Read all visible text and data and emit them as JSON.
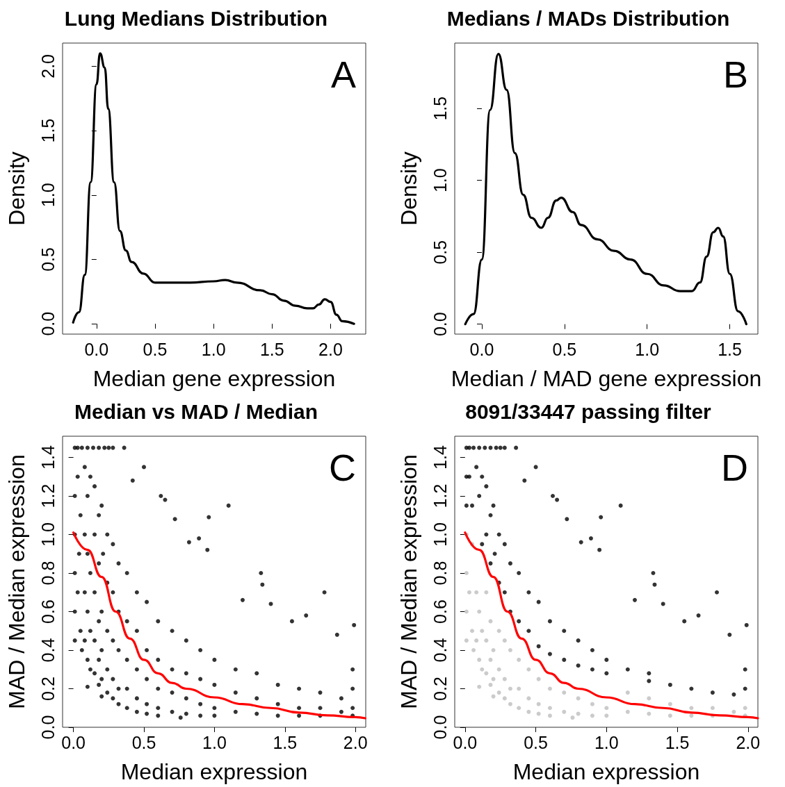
{
  "chart_data": [
    {
      "type": "line",
      "title": "Lung Medians Distribution",
      "xlabel": "Median gene expression",
      "ylabel": "Density",
      "annotations": [
        "A"
      ],
      "xlim": [
        -0.29,
        2.3
      ],
      "ylim": [
        -0.08,
        2.18
      ],
      "xticks": [
        {
          "value": 0,
          "label": "0.0"
        },
        {
          "value": 0.5,
          "label": "0.5"
        },
        {
          "value": 1,
          "label": "1.0"
        },
        {
          "value": 1.5,
          "label": "1.5"
        },
        {
          "value": 2,
          "label": "2.0"
        }
      ],
      "yticks": [
        {
          "value": 0,
          "label": "0.0"
        },
        {
          "value": 0.5,
          "label": "0.5"
        },
        {
          "value": 1,
          "label": "1.0"
        },
        {
          "value": 1.5,
          "label": "1.5"
        },
        {
          "value": 2,
          "label": "2.0"
        }
      ],
      "series": [
        {
          "color": "#000000",
          "x": [
            -0.2,
            -0.15,
            -0.1,
            -0.05,
            0,
            0.03,
            0.07,
            0.1,
            0.15,
            0.2,
            0.25,
            0.3,
            0.4,
            0.5,
            0.6,
            0.8,
            1,
            1.1,
            1.2,
            1.4,
            1.5,
            1.6,
            1.7,
            1.8,
            1.85,
            1.9,
            1.95,
            2,
            2.05,
            2.1,
            2.2
          ],
          "values": [
            0.01,
            0.09,
            0.38,
            1.1,
            1.86,
            2.1,
            1.99,
            1.67,
            1.1,
            0.72,
            0.57,
            0.48,
            0.39,
            0.32,
            0.32,
            0.32,
            0.33,
            0.34,
            0.32,
            0.26,
            0.23,
            0.18,
            0.14,
            0.12,
            0.12,
            0.15,
            0.19,
            0.17,
            0.07,
            0.02,
            0
          ]
        }
      ]
    },
    {
      "type": "line",
      "title": "Medians / MADs Distribution",
      "xlabel": "Median / MAD gene expression",
      "ylabel": "Density",
      "annotations": [
        "B"
      ],
      "xlim": [
        -0.164,
        1.67
      ],
      "ylim": [
        -0.069,
        1.955
      ],
      "xticks": [
        {
          "value": 0,
          "label": "0.0"
        },
        {
          "value": 0.5,
          "label": "0.5"
        },
        {
          "value": 1,
          "label": "1.0"
        },
        {
          "value": 1.5,
          "label": "1.5"
        }
      ],
      "yticks": [
        {
          "value": 0,
          "label": "0.0"
        },
        {
          "value": 0.5,
          "label": "0.5"
        },
        {
          "value": 1,
          "label": "1.0"
        },
        {
          "value": 1.5,
          "label": "1.5"
        }
      ],
      "series": [
        {
          "color": "#000000",
          "x": [
            -0.1,
            -0.05,
            0,
            0.05,
            0.1,
            0.15,
            0.2,
            0.25,
            0.3,
            0.36,
            0.4,
            0.45,
            0.48,
            0.55,
            0.6,
            0.7,
            0.8,
            0.9,
            1,
            1.1,
            1.2,
            1.27,
            1.32,
            1.36,
            1.4,
            1.43,
            1.46,
            1.5,
            1.55,
            1.6
          ],
          "values": [
            0,
            0.07,
            0.45,
            1.49,
            1.88,
            1.63,
            1.19,
            0.9,
            0.74,
            0.67,
            0.74,
            0.86,
            0.88,
            0.78,
            0.69,
            0.59,
            0.51,
            0.45,
            0.35,
            0.27,
            0.23,
            0.23,
            0.29,
            0.47,
            0.64,
            0.67,
            0.61,
            0.35,
            0.09,
            0
          ]
        }
      ]
    },
    {
      "type": "scatter",
      "title": "Median vs MAD / Median",
      "xlabel": "Median expression",
      "ylabel": "MAD / Median expression",
      "annotations": [
        "C"
      ],
      "xlim": [
        -0.077,
        2.073
      ],
      "ylim": [
        0,
        1.51
      ],
      "xticks": [
        {
          "value": 0,
          "label": "0.0"
        },
        {
          "value": 0.5,
          "label": "0.5"
        },
        {
          "value": 1,
          "label": "1.0"
        },
        {
          "value": 1.5,
          "label": "1.5"
        },
        {
          "value": 2,
          "label": "2.0"
        }
      ],
      "yticks": [
        {
          "value": 0,
          "label": "0.0"
        },
        {
          "value": 0.2,
          "label": "0.2"
        },
        {
          "value": 0.4,
          "label": "0.4"
        },
        {
          "value": 0.6,
          "label": "0.6"
        },
        {
          "value": 0.8,
          "label": "0.8"
        },
        {
          "value": 1,
          "label": "1.0"
        },
        {
          "value": 1.2,
          "label": "1.2"
        },
        {
          "value": 1.4,
          "label": "1.4"
        }
      ],
      "series": [
        {
          "color": "#000000",
          "x": [
            0.01,
            0.01,
            0.01,
            0.01,
            0.01,
            0.01,
            0.03,
            0.06,
            0.1,
            0.14,
            0.18,
            0.22,
            0.25,
            0.28,
            0.36,
            0.03,
            0.05,
            0.04,
            0.03,
            0.05,
            0.06,
            0.08,
            0.08,
            0.08,
            0.08,
            0.1,
            0.1,
            0.1,
            0.1,
            0.12,
            0.12,
            0.12,
            0.12,
            0.15,
            0.15,
            0.15,
            0.15,
            0.15,
            0.18,
            0.18,
            0.18,
            0.18,
            0.18,
            0.2,
            0.21,
            0.2,
            0.2,
            0.2,
            0.24,
            0.24,
            0.24,
            0.24,
            0.24,
            0.28,
            0.28,
            0.28,
            0.28,
            0.28,
            0.32,
            0.32,
            0.32,
            0.32,
            0.32,
            0.38,
            0.38,
            0.38,
            0.38,
            0.38,
            0.45,
            0.45,
            0.45,
            0.45,
            0.45,
            0.52,
            0.52,
            0.52,
            0.52,
            0.52,
            0.6,
            0.6,
            0.6,
            0.6,
            0.6,
            0.7,
            0.7,
            0.7,
            0.7,
            0.8,
            0.8,
            0.8,
            0.8,
            0.9,
            0.9,
            0.9,
            0.9,
            1,
            1,
            1,
            1,
            1.15,
            1.15,
            1.15,
            1.3,
            1.3,
            1.3,
            1.45,
            1.45,
            1.45,
            1.6,
            1.6,
            1.6,
            1.75,
            1.75,
            1.75,
            1.9,
            1.9,
            1.98,
            1.98,
            1.98,
            1.98,
            0.5,
            0.42,
            0.65,
            0.62,
            0.72,
            0.96,
            1.1,
            0.89,
            0.95,
            0.82,
            1.33,
            1.34,
            1.78,
            1.2,
            1.4,
            1.65,
            1.99,
            1.87,
            1.55,
            0.1,
            0.2,
            0.76
          ],
          "values": [
            0.45,
            0.6,
            0.8,
            1,
            1.2,
            1.45,
            1.45,
            1.45,
            1.45,
            1.45,
            1.45,
            1.45,
            1.45,
            1.45,
            1.45,
            1.3,
            1.1,
            0.9,
            0.7,
            0.5,
            0.4,
            1.35,
            1,
            0.7,
            0.45,
            1.2,
            0.9,
            0.6,
            0.35,
            1.3,
            0.8,
            0.5,
            0.3,
            1.25,
            1,
            0.7,
            0.45,
            0.28,
            1.1,
            0.85,
            0.55,
            0.35,
            0.22,
            1.15,
            0.9,
            0.6,
            0.4,
            0.25,
            1,
            0.75,
            0.5,
            0.3,
            0.18,
            0.95,
            0.7,
            0.45,
            0.25,
            0.15,
            0.85,
            0.6,
            0.4,
            0.2,
            0.12,
            0.8,
            0.55,
            0.35,
            0.2,
            0.1,
            0.7,
            0.5,
            0.3,
            0.15,
            0.08,
            0.65,
            0.4,
            0.25,
            0.12,
            0.07,
            0.55,
            0.35,
            0.2,
            0.1,
            0.06,
            0.5,
            0.3,
            0.18,
            0.08,
            0.45,
            0.28,
            0.15,
            0.07,
            0.4,
            0.25,
            0.12,
            0.06,
            0.35,
            0.22,
            0.1,
            0.06,
            0.3,
            0.18,
            0.08,
            0.28,
            0.15,
            0.07,
            0.22,
            0.12,
            0.06,
            0.2,
            0.1,
            0.06,
            0.18,
            0.1,
            0.06,
            0.15,
            0.08,
            0.3,
            0.2,
            0.1,
            0.06,
            1.35,
            1.28,
            1.18,
            1.2,
            1.08,
            1.09,
            1.15,
            0.98,
            0.92,
            0.96,
            0.8,
            0.74,
            0.7,
            0.66,
            0.64,
            0.58,
            0.53,
            0.48,
            0.55,
            0.21,
            0.16,
            0.05
          ]
        },
        {
          "type": "line",
          "color": "#ff0000",
          "x": [
            0,
            0.1,
            0.2,
            0.3,
            0.4,
            0.5,
            0.6,
            0.7,
            0.8,
            1,
            1.2,
            1.4,
            1.6,
            1.8,
            2,
            2.07
          ],
          "values": [
            1.01,
            0.92,
            0.78,
            0.6,
            0.46,
            0.35,
            0.28,
            0.23,
            0.2,
            0.155,
            0.12,
            0.1,
            0.076,
            0.062,
            0.053,
            0.047
          ]
        }
      ]
    },
    {
      "type": "scatter",
      "title": "8091/33447 passing filter",
      "xlabel": "Median expression",
      "ylabel": "MAD / Median expression",
      "annotations": [
        "D"
      ],
      "xlim": [
        -0.073,
        2.07
      ],
      "ylim": [
        0,
        1.51
      ],
      "xticks": [
        {
          "value": 0,
          "label": "0.0"
        },
        {
          "value": 0.5,
          "label": "0.5"
        },
        {
          "value": 1,
          "label": "1.0"
        },
        {
          "value": 1.5,
          "label": "1.5"
        },
        {
          "value": 2,
          "label": "2.0"
        }
      ],
      "yticks": [
        {
          "value": 0,
          "label": "0.0"
        },
        {
          "value": 0.2,
          "label": "0.2"
        },
        {
          "value": 0.4,
          "label": "0.4"
        },
        {
          "value": 0.6,
          "label": "0.6"
        },
        {
          "value": 0.8,
          "label": "0.8"
        },
        {
          "value": 1,
          "label": "1.0"
        },
        {
          "value": 1.2,
          "label": "1.2"
        },
        {
          "value": 1.4,
          "label": "1.4"
        }
      ],
      "series": [
        {
          "color": "#bebebe",
          "x": [
            0.01,
            0.01,
            0.01,
            0.01,
            0.03,
            0.05,
            0.06,
            0.05,
            0.08,
            0.08,
            0.1,
            0.1,
            0.12,
            0.12,
            0.15,
            0.15,
            0.15,
            0.18,
            0.18,
            0.18,
            0.2,
            0.2,
            0.24,
            0.24,
            0.24,
            0.28,
            0.28,
            0.28,
            0.32,
            0.32,
            0.32,
            0.38,
            0.38,
            0.38,
            0.45,
            0.45,
            0.45,
            0.52,
            0.52,
            0.52,
            0.6,
            0.6,
            0.6,
            0.7,
            0.7,
            0.8,
            0.8,
            0.9,
            0.9,
            1,
            1,
            1.15,
            1.15,
            1.3,
            1.3,
            1.45,
            1.45,
            1.6,
            1.6,
            1.75,
            1.75,
            1.9,
            1.98,
            1.98,
            0.1,
            0.2,
            0.76
          ],
          "values": [
            0.45,
            0.6,
            0.8,
            1,
            0.7,
            0.5,
            0.4,
            0.95,
            0.7,
            0.45,
            0.6,
            0.35,
            0.5,
            0.3,
            0.7,
            0.45,
            0.28,
            0.55,
            0.35,
            0.22,
            0.4,
            0.25,
            0.5,
            0.3,
            0.18,
            0.45,
            0.25,
            0.15,
            0.4,
            0.2,
            0.12,
            0.35,
            0.2,
            0.1,
            0.3,
            0.15,
            0.08,
            0.25,
            0.12,
            0.07,
            0.2,
            0.1,
            0.06,
            0.18,
            0.08,
            0.15,
            0.07,
            0.12,
            0.06,
            0.1,
            0.06,
            0.18,
            0.08,
            0.15,
            0.07,
            0.12,
            0.06,
            0.1,
            0.06,
            0.1,
            0.06,
            0.08,
            0.1,
            0.06,
            0.21,
            0.16,
            0.05
          ]
        },
        {
          "color": "#000000",
          "x": [
            0.01,
            0.01,
            0.01,
            0.03,
            0.06,
            0.1,
            0.14,
            0.18,
            0.22,
            0.25,
            0.28,
            0.36,
            0.03,
            0.05,
            0.08,
            0.1,
            0.12,
            0.12,
            0.15,
            0.15,
            0.18,
            0.18,
            0.2,
            0.21,
            0.24,
            0.24,
            0.28,
            0.28,
            0.32,
            0.32,
            0.38,
            0.38,
            0.45,
            0.45,
            0.52,
            0.52,
            0.6,
            0.6,
            0.7,
            0.7,
            0.8,
            0.8,
            0.9,
            0.9,
            1,
            1,
            1.15,
            1.3,
            1.3,
            1.45,
            1.6,
            1.75,
            1.9,
            1.98,
            1.98,
            0.5,
            0.42,
            0.65,
            0.62,
            0.72,
            0.96,
            1.1,
            0.89,
            0.95,
            0.82,
            1.33,
            1.34,
            1.78,
            1.2,
            1.4,
            1.65,
            1.99,
            1.87,
            1.55
          ],
          "values": [
            1.15,
            1.3,
            1.45,
            1.45,
            1.45,
            1.45,
            1.45,
            1.45,
            1.45,
            1.45,
            1.45,
            1.45,
            1.3,
            1.15,
            1.35,
            1.2,
            1.3,
            0.95,
            1.25,
            1,
            1.1,
            0.85,
            1.15,
            0.9,
            1,
            0.75,
            0.95,
            0.7,
            0.85,
            0.6,
            0.8,
            0.55,
            0.7,
            0.5,
            0.65,
            0.42,
            0.55,
            0.38,
            0.5,
            0.35,
            0.45,
            0.32,
            0.4,
            0.3,
            0.35,
            0.28,
            0.3,
            0.28,
            0.24,
            0.22,
            0.2,
            0.18,
            0.17,
            0.3,
            0.2,
            1.35,
            1.28,
            1.18,
            1.2,
            1.08,
            1.09,
            1.15,
            0.98,
            0.92,
            0.96,
            0.8,
            0.74,
            0.7,
            0.66,
            0.64,
            0.58,
            0.53,
            0.48,
            0.55
          ]
        },
        {
          "type": "line",
          "color": "#ff0000",
          "x": [
            0,
            0.1,
            0.2,
            0.3,
            0.4,
            0.5,
            0.6,
            0.7,
            0.8,
            1,
            1.2,
            1.4,
            1.6,
            1.8,
            2,
            2.07
          ],
          "values": [
            1.01,
            0.92,
            0.78,
            0.6,
            0.46,
            0.35,
            0.28,
            0.23,
            0.2,
            0.155,
            0.12,
            0.1,
            0.076,
            0.062,
            0.053,
            0.047
          ]
        }
      ]
    }
  ]
}
